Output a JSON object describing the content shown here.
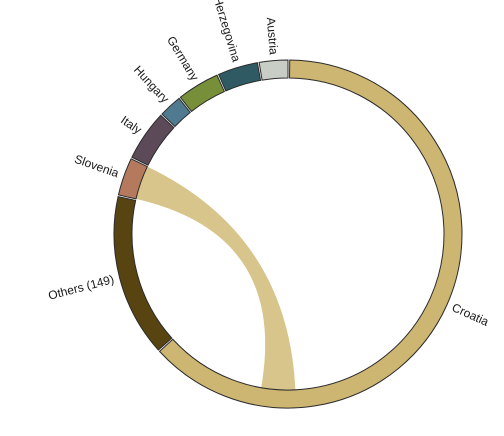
{
  "chart_data": {
    "type": "chord",
    "segments": [
      {
        "name": "Croatia",
        "share": 0.594,
        "color": "#cdb672"
      },
      {
        "name": "Others (149)",
        "share": 0.142,
        "color": "#574411"
      },
      {
        "name": "Slovenia",
        "share": 0.033,
        "color": "#b57a5e"
      },
      {
        "name": "Italy",
        "share": 0.044,
        "color": "#5d4a59"
      },
      {
        "name": "Hungary",
        "share": 0.02,
        "color": "#4f7a90"
      },
      {
        "name": "Germany",
        "share": 0.037,
        "color": "#788f3a"
      },
      {
        "name": "Bosnia and Herzegovina",
        "share": 0.035,
        "color": "#2f5a63"
      },
      {
        "name": "Austria",
        "share": 0.025,
        "color": "#c8cdc6"
      }
    ],
    "links": [
      {
        "source": "Slovenia",
        "target": "Croatia",
        "color": "#d8c58c"
      }
    ]
  }
}
